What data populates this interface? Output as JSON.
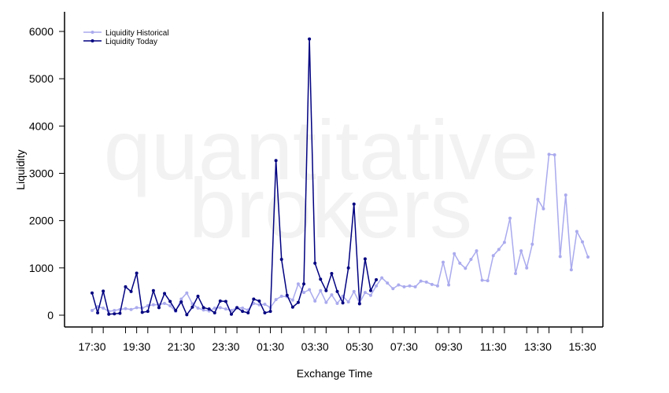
{
  "watermark": {
    "line1": "quantitative",
    "line2": "brokers"
  },
  "colors": {
    "historical": "#aaaaee",
    "today": "#000080",
    "axis": "#000000",
    "watermark": "#f2f2f2"
  },
  "chart_data": {
    "type": "line",
    "title": "",
    "xlabel": "Exchange Time",
    "ylabel": "Liquidity",
    "ylim": [
      0,
      6000
    ],
    "y_ticks": [
      0,
      1000,
      2000,
      3000,
      4000,
      5000,
      6000
    ],
    "x_tick_labels": [
      "17:30",
      "19:30",
      "21:30",
      "23:30",
      "01:30",
      "03:30",
      "05:30",
      "07:30",
      "09:30",
      "11:30",
      "13:30",
      "15:30"
    ],
    "x_tick_positions": [
      0,
      8,
      16,
      24,
      32,
      40,
      48,
      56,
      64,
      72,
      80,
      88
    ],
    "x_minor_positions": [
      2,
      6,
      10,
      14,
      18,
      22,
      26,
      30,
      34,
      38,
      42,
      46,
      50,
      54,
      58,
      62,
      66,
      70,
      74,
      78,
      82,
      86
    ],
    "x_range": [
      -5,
      92
    ],
    "x_step_minutes": 15,
    "grid": false,
    "legend_position": "top-left",
    "series": [
      {
        "name": "Liquidity Historical",
        "values": [
          100,
          180,
          150,
          80,
          100,
          120,
          140,
          120,
          160,
          150,
          200,
          220,
          220,
          250,
          200,
          80,
          340,
          470,
          240,
          150,
          110,
          90,
          150,
          160,
          130,
          100,
          160,
          150,
          110,
          250,
          220,
          230,
          160,
          330,
          400,
          390,
          320,
          660,
          480,
          540,
          300,
          520,
          270,
          430,
          250,
          400,
          280,
          500,
          260,
          480,
          420,
          620,
          790,
          680,
          560,
          640,
          600,
          620,
          600,
          720,
          700,
          650,
          620,
          1120,
          640,
          1300,
          1100,
          990,
          1180,
          1360,
          740,
          730,
          1260,
          1390,
          1540,
          2050,
          880,
          1360,
          1000,
          1500,
          2450,
          2250,
          3400,
          3390,
          1240,
          2540,
          960,
          1770,
          1550,
          1230
        ]
      },
      {
        "name": "Liquidity Today",
        "values": [
          470,
          50,
          510,
          20,
          30,
          40,
          600,
          500,
          890,
          60,
          80,
          520,
          160,
          460,
          290,
          100,
          280,
          10,
          170,
          400,
          160,
          130,
          50,
          300,
          290,
          20,
          160,
          80,
          50,
          340,
          300,
          50,
          80,
          3270,
          1180,
          420,
          170,
          270,
          660,
          5840,
          1100,
          760,
          520,
          880,
          500,
          260,
          1000,
          2350,
          240,
          1190,
          520,
          750
        ]
      }
    ]
  }
}
